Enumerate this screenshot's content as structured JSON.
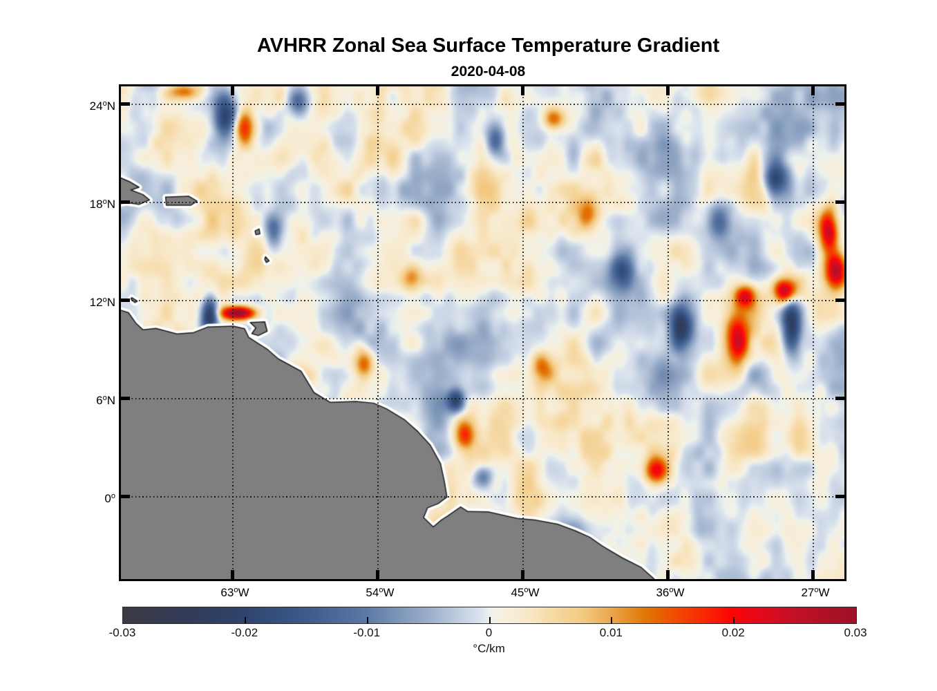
{
  "chart_data": {
    "type": "heatmap",
    "title": "AVHRR Zonal Sea Surface Temperature Gradient",
    "subtitle": "2020-04-08",
    "degree_symbol": "o",
    "geo": {
      "lon_min": -70.07,
      "lon_max": -25.2,
      "lat_min": -4.91,
      "lat_max": 25.22
    },
    "xticks": [
      {
        "lon": -63,
        "label": "63",
        "suffix": "W"
      },
      {
        "lon": -54,
        "label": "54",
        "suffix": "W"
      },
      {
        "lon": -45,
        "label": "45",
        "suffix": "W"
      },
      {
        "lon": -36,
        "label": "36",
        "suffix": "W"
      },
      {
        "lon": -27,
        "label": "27",
        "suffix": "W"
      }
    ],
    "yticks": [
      {
        "lat": 24,
        "label": "24",
        "suffix": "N"
      },
      {
        "lat": 18,
        "label": "18",
        "suffix": "N"
      },
      {
        "lat": 12,
        "label": "12",
        "suffix": "N"
      },
      {
        "lat": 6,
        "label": "6",
        "suffix": "N"
      },
      {
        "lat": 0,
        "label": "0",
        "suffix": ""
      }
    ],
    "grid": true,
    "colorbar": {
      "min": -0.03,
      "max": 0.03,
      "tick_values": [
        -0.03,
        -0.02,
        -0.01,
        0,
        0.01,
        0.02,
        0.03
      ],
      "tick_labels": [
        "-0.03",
        "-0.02",
        "-0.01",
        "0",
        "0.01",
        "0.02",
        "0.03"
      ],
      "inner_tick_values": [
        -0.02,
        -0.01,
        0,
        0.01,
        0.02
      ],
      "unit_degree": "°",
      "unit_text": "C/km",
      "stops": [
        {
          "t": 0.0,
          "c": "#3a3a41"
        },
        {
          "t": 0.08,
          "c": "#333a55"
        },
        {
          "t": 0.17,
          "c": "#2e456e"
        },
        {
          "t": 0.25,
          "c": "#3d5a8c"
        },
        {
          "t": 0.33,
          "c": "#5b77a5"
        },
        {
          "t": 0.38,
          "c": "#8098ba"
        },
        {
          "t": 0.42,
          "c": "#9db0cb"
        },
        {
          "t": 0.46,
          "c": "#c3cfe2"
        },
        {
          "t": 0.49,
          "c": "#dde5ee"
        },
        {
          "t": 0.5,
          "c": "#edf2ec"
        },
        {
          "t": 0.52,
          "c": "#f7efdd"
        },
        {
          "t": 0.55,
          "c": "#f8e9cb"
        },
        {
          "t": 0.58,
          "c": "#f6dcab"
        },
        {
          "t": 0.63,
          "c": "#f2c87f"
        },
        {
          "t": 0.67,
          "c": "#eba247"
        },
        {
          "t": 0.71,
          "c": "#e07a06"
        },
        {
          "t": 0.75,
          "c": "#ef4f00"
        },
        {
          "t": 0.79,
          "c": "#f92a02"
        },
        {
          "t": 0.83,
          "c": "#fb0505"
        },
        {
          "t": 0.875,
          "c": "#e00a1d"
        },
        {
          "t": 0.92,
          "c": "#c11026"
        },
        {
          "t": 1.0,
          "c": "#9c1127"
        }
      ]
    },
    "colors": {
      "land": "#7f7f7f",
      "coast": "#1a1a1a",
      "nodata_halo": "#ffffff",
      "gridline": "#141414",
      "frame": "#000000",
      "background": "#ffffff"
    },
    "land": [
      {
        "name": "south-america",
        "points": [
          [
            -70.35,
            11.62
          ],
          [
            -69.6,
            11.38
          ],
          [
            -69.15,
            10.75
          ],
          [
            -68.7,
            10.33
          ],
          [
            -67.9,
            10.42
          ],
          [
            -66.6,
            10.08
          ],
          [
            -65.6,
            10.15
          ],
          [
            -64.7,
            10.5
          ],
          [
            -63.1,
            10.56
          ],
          [
            -62.4,
            10.4
          ],
          [
            -62.15,
            9.88
          ],
          [
            -61.0,
            9.15
          ],
          [
            -60.3,
            8.55
          ],
          [
            -58.9,
            7.8
          ],
          [
            -58.1,
            6.5
          ],
          [
            -57.1,
            5.9
          ],
          [
            -55.5,
            5.95
          ],
          [
            -54.4,
            5.85
          ],
          [
            -53.6,
            5.5
          ],
          [
            -52.5,
            4.85
          ],
          [
            -51.7,
            4.15
          ],
          [
            -50.9,
            3.3
          ],
          [
            -50.25,
            2.15
          ],
          [
            -50.0,
            1.0
          ],
          [
            -49.85,
            0.1
          ],
          [
            -50.4,
            -0.3
          ],
          [
            -51.05,
            -0.55
          ],
          [
            -51.3,
            -1.15
          ],
          [
            -50.7,
            -1.72
          ],
          [
            -50.2,
            -1.3
          ],
          [
            -49.8,
            -1.05
          ],
          [
            -49.0,
            -0.5
          ],
          [
            -48.55,
            -0.78
          ],
          [
            -47.3,
            -0.8
          ],
          [
            -46.4,
            -1.0
          ],
          [
            -45.5,
            -1.2
          ],
          [
            -44.4,
            -1.3
          ],
          [
            -43.0,
            -1.55
          ],
          [
            -41.9,
            -1.95
          ],
          [
            -41.0,
            -2.35
          ],
          [
            -40.2,
            -2.9
          ],
          [
            -39.0,
            -3.6
          ],
          [
            -37.8,
            -4.2
          ],
          [
            -36.95,
            -4.95
          ],
          [
            -37.0,
            -5.4
          ],
          [
            -70.35,
            -5.4
          ]
        ]
      },
      {
        "name": "trinidad",
        "points": [
          [
            -62.05,
            10.78
          ],
          [
            -61.15,
            10.82
          ],
          [
            -61.0,
            10.25
          ],
          [
            -61.55,
            9.98
          ],
          [
            -61.95,
            10.1
          ],
          [
            -61.7,
            10.45
          ]
        ]
      },
      {
        "name": "hispaniola",
        "points": [
          [
            -70.4,
            19.75
          ],
          [
            -69.55,
            19.4
          ],
          [
            -68.95,
            19.05
          ],
          [
            -69.45,
            18.88
          ],
          [
            -68.7,
            18.6
          ],
          [
            -68.3,
            18.28
          ],
          [
            -68.95,
            18.0
          ],
          [
            -69.75,
            18.12
          ],
          [
            -70.4,
            17.98
          ]
        ]
      },
      {
        "name": "puerto-rico",
        "points": [
          [
            -67.3,
            18.45
          ],
          [
            -65.85,
            18.5
          ],
          [
            -65.35,
            18.2
          ],
          [
            -65.75,
            17.95
          ],
          [
            -67.25,
            17.95
          ]
        ]
      },
      {
        "name": "guadeloupe",
        "points": [
          [
            -61.75,
            16.38
          ],
          [
            -61.5,
            16.5
          ],
          [
            -61.45,
            16.2
          ],
          [
            -61.7,
            16.15
          ]
        ]
      },
      {
        "name": "martinique",
        "points": [
          [
            -61.1,
            14.8
          ],
          [
            -60.88,
            14.55
          ],
          [
            -61.05,
            14.45
          ],
          [
            -61.15,
            14.65
          ]
        ]
      },
      {
        "name": "curacao",
        "points": [
          [
            -69.4,
            12.3
          ],
          [
            -69.05,
            12.08
          ],
          [
            -69.2,
            12.0
          ],
          [
            -69.45,
            12.22
          ]
        ]
      }
    ],
    "field": {
      "seed": 11,
      "anisotropy": 1.35,
      "octaves": [
        {
          "scale": 2.8,
          "amp": 0.0045
        },
        {
          "scale": 1.4,
          "amp": 0.0038
        },
        {
          "scale": 0.7,
          "amp": 0.002
        }
      ],
      "features": [
        [
          -62.8,
          11.35,
          0.034,
          0.75,
          0.3
        ],
        [
          -64.55,
          11.15,
          -0.03,
          0.38,
          0.8
        ],
        [
          -63.6,
          23.4,
          -0.022,
          0.5,
          0.9
        ],
        [
          -62.4,
          22.7,
          0.02,
          0.45,
          0.75
        ],
        [
          -66.2,
          24.9,
          0.016,
          0.8,
          0.4
        ],
        [
          -59.1,
          24.3,
          -0.016,
          0.5,
          0.6
        ],
        [
          -43.2,
          23.2,
          0.016,
          0.5,
          0.5
        ],
        [
          -46.8,
          22.0,
          -0.014,
          0.45,
          0.8
        ],
        [
          -26.2,
          16.3,
          0.026,
          0.45,
          1.0
        ],
        [
          -25.7,
          14.0,
          0.027,
          0.5,
          0.8
        ],
        [
          -28.9,
          12.7,
          0.028,
          0.5,
          0.55
        ],
        [
          -31.3,
          12.4,
          0.02,
          0.5,
          0.5
        ],
        [
          -31.8,
          9.6,
          0.022,
          0.5,
          1.1
        ],
        [
          -28.5,
          10.6,
          -0.024,
          0.42,
          1.2
        ],
        [
          -35.3,
          10.5,
          -0.022,
          0.5,
          0.9
        ],
        [
          -39.0,
          13.9,
          -0.014,
          0.5,
          0.8
        ],
        [
          -49.3,
          6.0,
          -0.02,
          0.38,
          0.5
        ],
        [
          -55.0,
          8.3,
          0.016,
          0.45,
          0.7
        ],
        [
          -36.9,
          1.7,
          0.018,
          0.5,
          0.6
        ],
        [
          -29.5,
          19.5,
          -0.018,
          0.5,
          0.7
        ],
        [
          -60.6,
          16.3,
          -0.013,
          0.4,
          0.7
        ],
        [
          -48.8,
          3.9,
          0.015,
          0.4,
          0.6
        ],
        [
          -47.6,
          1.3,
          -0.013,
          0.4,
          0.5
        ],
        [
          -52.0,
          13.5,
          0.012,
          0.5,
          0.6
        ],
        [
          -44.0,
          8.0,
          0.012,
          0.5,
          0.7
        ],
        [
          -41.0,
          17.5,
          0.012,
          0.5,
          0.8
        ],
        [
          -33.0,
          17.0,
          -0.012,
          0.5,
          0.8
        ]
      ]
    }
  }
}
